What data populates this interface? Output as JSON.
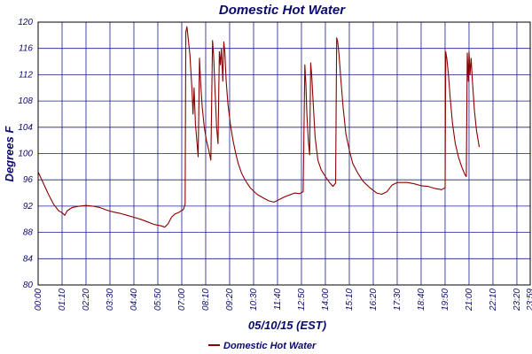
{
  "chart_data": {
    "type": "line",
    "title": "Domestic Hot Water",
    "xlabel": "05/10/15 (EST)",
    "ylabel": "Degrees F",
    "ylim": [
      80,
      120
    ],
    "yticks": [
      "80",
      "84",
      "88",
      "92",
      "96",
      "100",
      "104",
      "108",
      "112",
      "116",
      "120"
    ],
    "xlim": [
      "00:00",
      "23:59"
    ],
    "xticks": [
      "00:00",
      "01:10",
      "02:20",
      "03:30",
      "04:40",
      "05:50",
      "07:00",
      "08:10",
      "09:20",
      "10:30",
      "11:40",
      "12:50",
      "14:00",
      "15:10",
      "16:20",
      "17:30",
      "18:40",
      "19:50",
      "21:00",
      "22:10",
      "23:20",
      "23:59"
    ],
    "grid": true,
    "legend": "bottom-center",
    "series": [
      {
        "name": "Domestic Hot Water",
        "color": "#8b0000",
        "points": [
          [
            "00:00",
            97.2
          ],
          [
            "00:15",
            95.5
          ],
          [
            "00:30",
            93.8
          ],
          [
            "00:45",
            92.3
          ],
          [
            "01:00",
            91.3
          ],
          [
            "01:10",
            91.0
          ],
          [
            "01:18",
            90.6
          ],
          [
            "01:25",
            91.3
          ],
          [
            "01:40",
            91.8
          ],
          [
            "02:00",
            92.0
          ],
          [
            "02:20",
            92.1
          ],
          [
            "02:40",
            92.0
          ],
          [
            "03:00",
            91.8
          ],
          [
            "03:20",
            91.4
          ],
          [
            "03:40",
            91.1
          ],
          [
            "04:00",
            90.9
          ],
          [
            "04:20",
            90.6
          ],
          [
            "04:40",
            90.3
          ],
          [
            "05:00",
            90.0
          ],
          [
            "05:20",
            89.6
          ],
          [
            "05:40",
            89.2
          ],
          [
            "06:00",
            89.0
          ],
          [
            "06:10",
            88.8
          ],
          [
            "06:20",
            89.3
          ],
          [
            "06:30",
            90.3
          ],
          [
            "06:40",
            90.8
          ],
          [
            "06:50",
            91.0
          ],
          [
            "07:05",
            91.5
          ],
          [
            "07:10",
            92.3
          ],
          [
            "07:12",
            118.5
          ],
          [
            "07:15",
            119.3
          ],
          [
            "07:18",
            118.0
          ],
          [
            "07:24",
            115.0
          ],
          [
            "07:30",
            109.5
          ],
          [
            "07:33",
            106.0
          ],
          [
            "07:36",
            110.0
          ],
          [
            "07:40",
            104.5
          ],
          [
            "07:45",
            101.5
          ],
          [
            "07:48",
            99.5
          ],
          [
            "07:52",
            114.5
          ],
          [
            "07:55",
            111.0
          ],
          [
            "08:00",
            107.0
          ],
          [
            "08:06",
            104.0
          ],
          [
            "08:12",
            102.0
          ],
          [
            "08:20",
            100.3
          ],
          [
            "08:25",
            99.0
          ],
          [
            "08:30",
            117.2
          ],
          [
            "08:33",
            115.0
          ],
          [
            "08:37",
            110.0
          ],
          [
            "08:42",
            104.0
          ],
          [
            "08:46",
            101.5
          ],
          [
            "08:50",
            115.5
          ],
          [
            "08:53",
            113.5
          ],
          [
            "08:56",
            116.0
          ],
          [
            "09:00",
            111.0
          ],
          [
            "09:03",
            117.0
          ],
          [
            "09:06",
            115.5
          ],
          [
            "09:10",
            111.0
          ],
          [
            "09:15",
            107.5
          ],
          [
            "09:22",
            104.5
          ],
          [
            "09:30",
            102.0
          ],
          [
            "09:38",
            100.0
          ],
          [
            "09:45",
            98.5
          ],
          [
            "09:55",
            97.0
          ],
          [
            "10:05",
            96.0
          ],
          [
            "10:20",
            94.8
          ],
          [
            "10:40",
            93.8
          ],
          [
            "11:00",
            93.2
          ],
          [
            "11:15",
            92.8
          ],
          [
            "11:30",
            92.6
          ],
          [
            "11:45",
            93.0
          ],
          [
            "12:00",
            93.4
          ],
          [
            "12:15",
            93.7
          ],
          [
            "12:30",
            94.0
          ],
          [
            "12:45",
            93.9
          ],
          [
            "12:55",
            94.2
          ],
          [
            "13:00",
            113.5
          ],
          [
            "13:03",
            110.5
          ],
          [
            "13:06",
            106.0
          ],
          [
            "13:10",
            102.0
          ],
          [
            "13:14",
            99.8
          ],
          [
            "13:17",
            113.8
          ],
          [
            "13:20",
            112.0
          ],
          [
            "13:25",
            107.0
          ],
          [
            "13:30",
            102.5
          ],
          [
            "13:38",
            99.0
          ],
          [
            "13:48",
            97.5
          ],
          [
            "14:00",
            96.5
          ],
          [
            "14:12",
            95.6
          ],
          [
            "14:22",
            95.0
          ],
          [
            "14:30",
            95.5
          ],
          [
            "14:33",
            117.6
          ],
          [
            "14:36",
            117.0
          ],
          [
            "14:40",
            115.0
          ],
          [
            "14:45",
            111.5
          ],
          [
            "14:52",
            107.0
          ],
          [
            "15:00",
            103.0
          ],
          [
            "15:10",
            100.5
          ],
          [
            "15:20",
            98.5
          ],
          [
            "15:35",
            97.0
          ],
          [
            "15:50",
            95.8
          ],
          [
            "16:10",
            94.8
          ],
          [
            "16:30",
            94.0
          ],
          [
            "16:45",
            93.8
          ],
          [
            "17:00",
            94.2
          ],
          [
            "17:15",
            95.2
          ],
          [
            "17:30",
            95.6
          ],
          [
            "17:45",
            95.6
          ],
          [
            "18:00",
            95.6
          ],
          [
            "18:20",
            95.4
          ],
          [
            "18:40",
            95.1
          ],
          [
            "19:00",
            95.0
          ],
          [
            "19:20",
            94.7
          ],
          [
            "19:40",
            94.5
          ],
          [
            "19:50",
            94.8
          ],
          [
            "19:52",
            115.5
          ],
          [
            "19:55",
            114.5
          ],
          [
            "20:00",
            112.0
          ],
          [
            "20:05",
            108.5
          ],
          [
            "20:12",
            104.5
          ],
          [
            "20:20",
            101.5
          ],
          [
            "20:30",
            99.3
          ],
          [
            "20:40",
            97.8
          ],
          [
            "20:48",
            96.8
          ],
          [
            "20:52",
            96.5
          ],
          [
            "20:55",
            115.3
          ],
          [
            "20:58",
            111.0
          ],
          [
            "21:00",
            115.5
          ],
          [
            "21:03",
            112.0
          ],
          [
            "21:06",
            114.5
          ],
          [
            "21:10",
            111.0
          ],
          [
            "21:16",
            106.5
          ],
          [
            "21:22",
            103.5
          ],
          [
            "21:30",
            101.0
          ]
        ]
      }
    ]
  }
}
